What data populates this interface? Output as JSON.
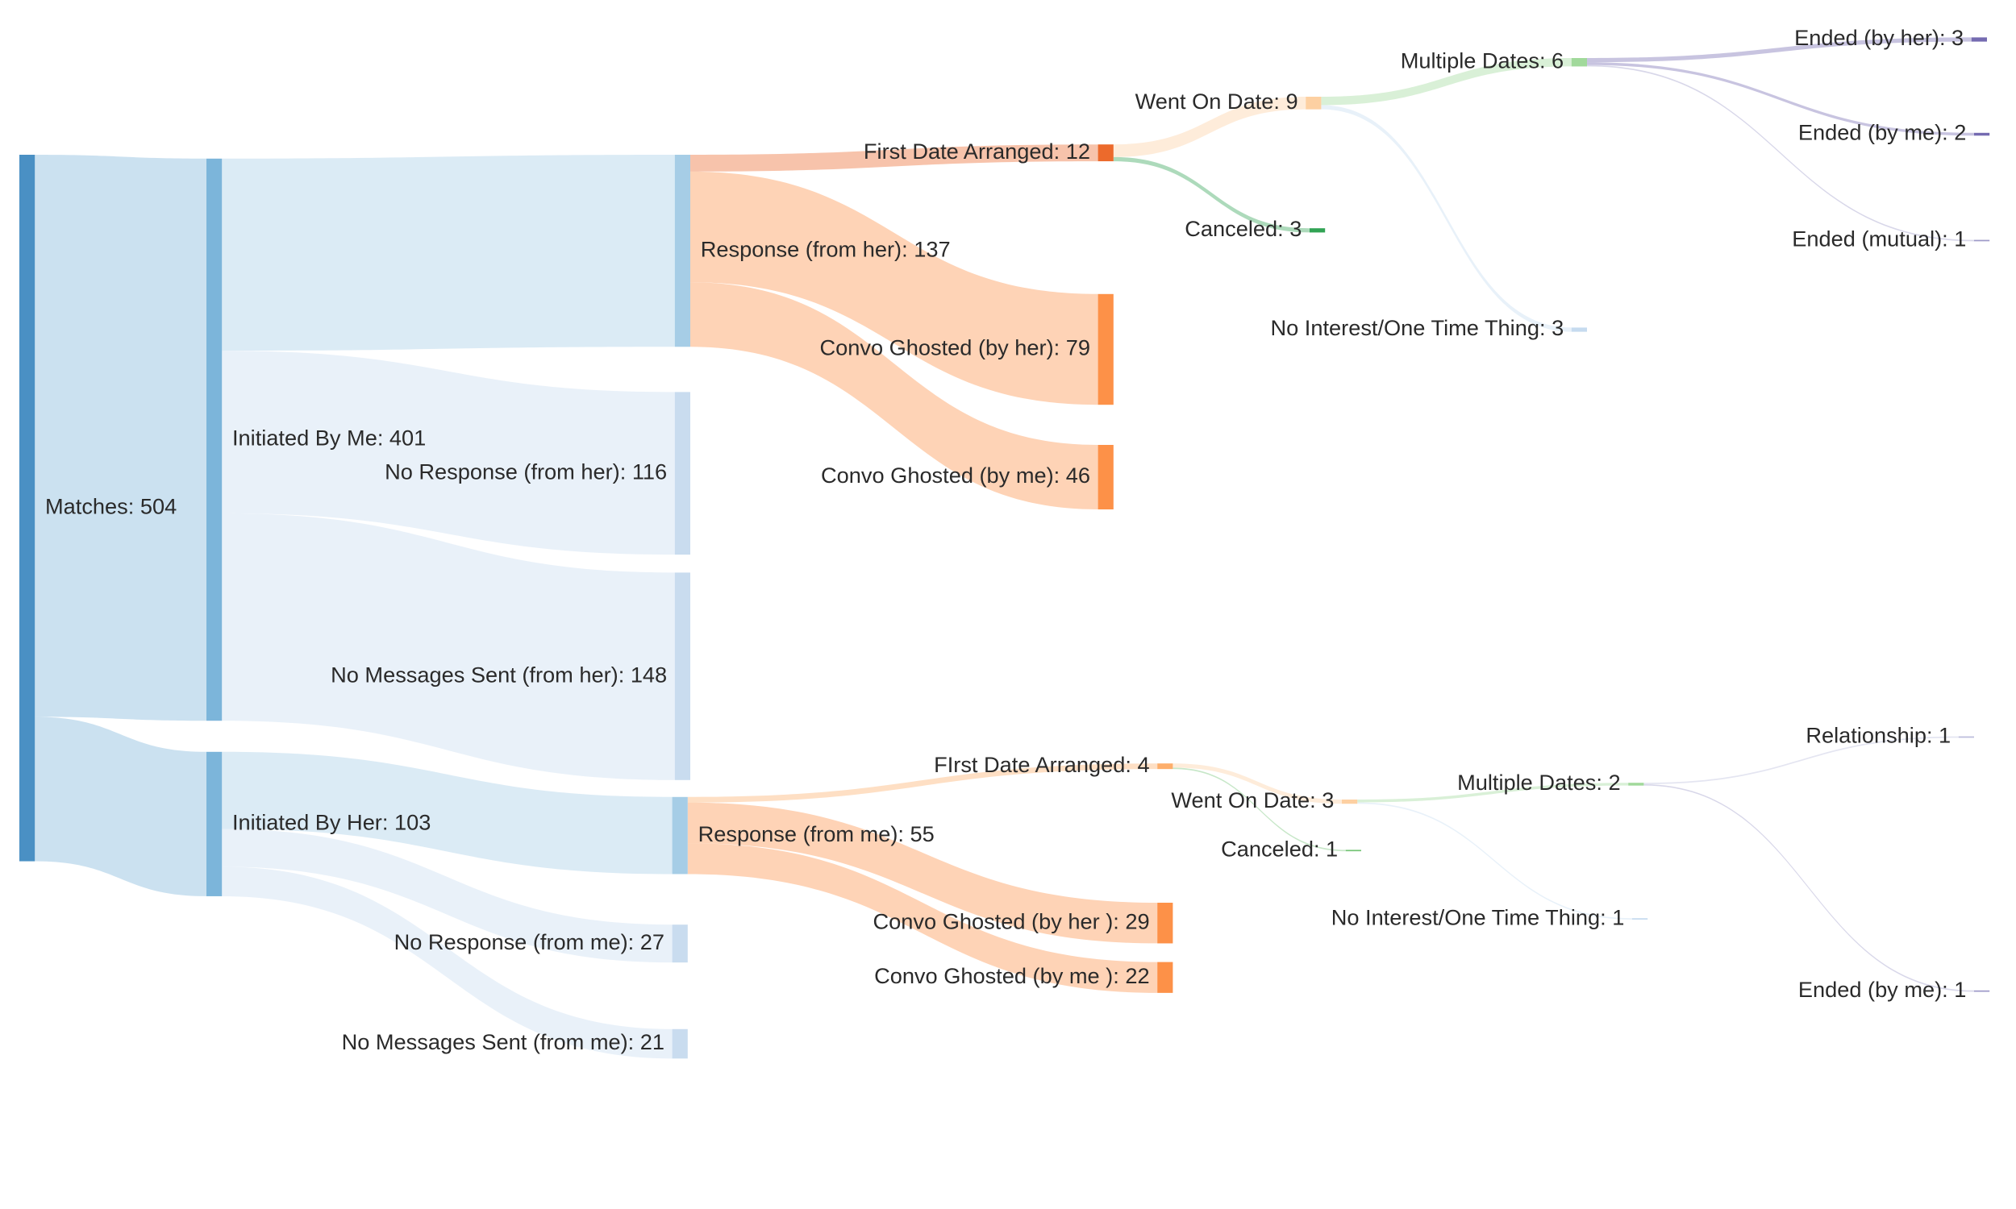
{
  "chart_data": {
    "type": "sankey",
    "nodes": [
      {
        "label": "Matches: 504",
        "value": 504,
        "color": "#4a90c4"
      },
      {
        "label": "Initiated By Me: 401",
        "value": 401,
        "color": "#7cb5da"
      },
      {
        "label": "Initiated By Her: 103",
        "value": 103,
        "color": "#7cb5da"
      },
      {
        "label": "Response (from her): 137",
        "value": 137,
        "color": "#a6cde6"
      },
      {
        "label": "No Response (from her): 116",
        "value": 116,
        "color": "#c9dcef"
      },
      {
        "label": "No Messages Sent (from her): 148",
        "value": 148,
        "color": "#c9dcef"
      },
      {
        "label": "Response (from me): 55",
        "value": 55,
        "color": "#a6cde6"
      },
      {
        "label": "No Response (from me): 27",
        "value": 27,
        "color": "#c9dcef"
      },
      {
        "label": "No Messages Sent (from me): 21",
        "value": 21,
        "color": "#c9dcef"
      },
      {
        "label": "First Date Arranged: 12",
        "value": 12,
        "color": "#ec6a2c"
      },
      {
        "label": "Convo Ghosted (by her): 79",
        "value": 79,
        "color": "#fd9148"
      },
      {
        "label": "Convo Ghosted (by me): 46",
        "value": 46,
        "color": "#fd9148"
      },
      {
        "label": "FIrst Date Arranged: 4",
        "value": 4,
        "color": "#fdae6b"
      },
      {
        "label": "Convo Ghosted (by her ): 29",
        "value": 29,
        "color": "#fd9148"
      },
      {
        "label": "Convo Ghosted (by me ): 22",
        "value": 22,
        "color": "#fd9148"
      },
      {
        "label": "Went On Date: 9",
        "value": 9,
        "color": "#fdd0a2"
      },
      {
        "label": "Canceled: 3",
        "value": 3,
        "color": "#31a354"
      },
      {
        "label": "Went On Date: 3",
        "value": 3,
        "color": "#fdd0a2"
      },
      {
        "label": "Canceled: 1",
        "value": 1,
        "color": "#74c476"
      },
      {
        "label": "Multiple Dates: 6",
        "value": 6,
        "color": "#a1d99b"
      },
      {
        "label": "No Interest/One Time Thing: 3",
        "value": 3,
        "color": "#c6dbef"
      },
      {
        "label": "Multiple Dates: 2",
        "value": 2,
        "color": "#a1d99b"
      },
      {
        "label": "No Interest/One Time Thing: 1",
        "value": 1,
        "color": "#c6dbef"
      },
      {
        "label": "Ended (by her): 3",
        "value": 3,
        "color": "#756bb1"
      },
      {
        "label": "Ended (by me): 2",
        "value": 2,
        "color": "#756bb1"
      },
      {
        "label": "Ended (mutual): 1",
        "value": 1,
        "color": "#9e9ac8"
      },
      {
        "label": "Relationship: 1",
        "value": 1,
        "color": "#bcbddc"
      },
      {
        "label": "Ended (by me): 1",
        "value": 1,
        "color": "#9e9ac8"
      }
    ],
    "links": [
      {
        "source": 0,
        "target": 1,
        "value": 401
      },
      {
        "source": 0,
        "target": 2,
        "value": 103
      },
      {
        "source": 1,
        "target": 3,
        "value": 137
      },
      {
        "source": 1,
        "target": 4,
        "value": 116
      },
      {
        "source": 1,
        "target": 5,
        "value": 148
      },
      {
        "source": 2,
        "target": 6,
        "value": 55
      },
      {
        "source": 2,
        "target": 7,
        "value": 27
      },
      {
        "source": 2,
        "target": 8,
        "value": 21
      },
      {
        "source": 3,
        "target": 9,
        "value": 12
      },
      {
        "source": 3,
        "target": 10,
        "value": 79
      },
      {
        "source": 3,
        "target": 11,
        "value": 46
      },
      {
        "source": 6,
        "target": 12,
        "value": 4
      },
      {
        "source": 6,
        "target": 13,
        "value": 29
      },
      {
        "source": 6,
        "target": 14,
        "value": 22
      },
      {
        "source": 9,
        "target": 15,
        "value": 9
      },
      {
        "source": 9,
        "target": 16,
        "value": 3
      },
      {
        "source": 12,
        "target": 17,
        "value": 3
      },
      {
        "source": 12,
        "target": 18,
        "value": 1
      },
      {
        "source": 15,
        "target": 19,
        "value": 6
      },
      {
        "source": 15,
        "target": 20,
        "value": 3
      },
      {
        "source": 17,
        "target": 21,
        "value": 2
      },
      {
        "source": 17,
        "target": 22,
        "value": 1
      },
      {
        "source": 19,
        "target": 23,
        "value": 3
      },
      {
        "source": 19,
        "target": 24,
        "value": 2
      },
      {
        "source": 19,
        "target": 25,
        "value": 1
      },
      {
        "source": 21,
        "target": 26,
        "value": 1
      },
      {
        "source": 21,
        "target": 27,
        "value": 1
      }
    ]
  }
}
